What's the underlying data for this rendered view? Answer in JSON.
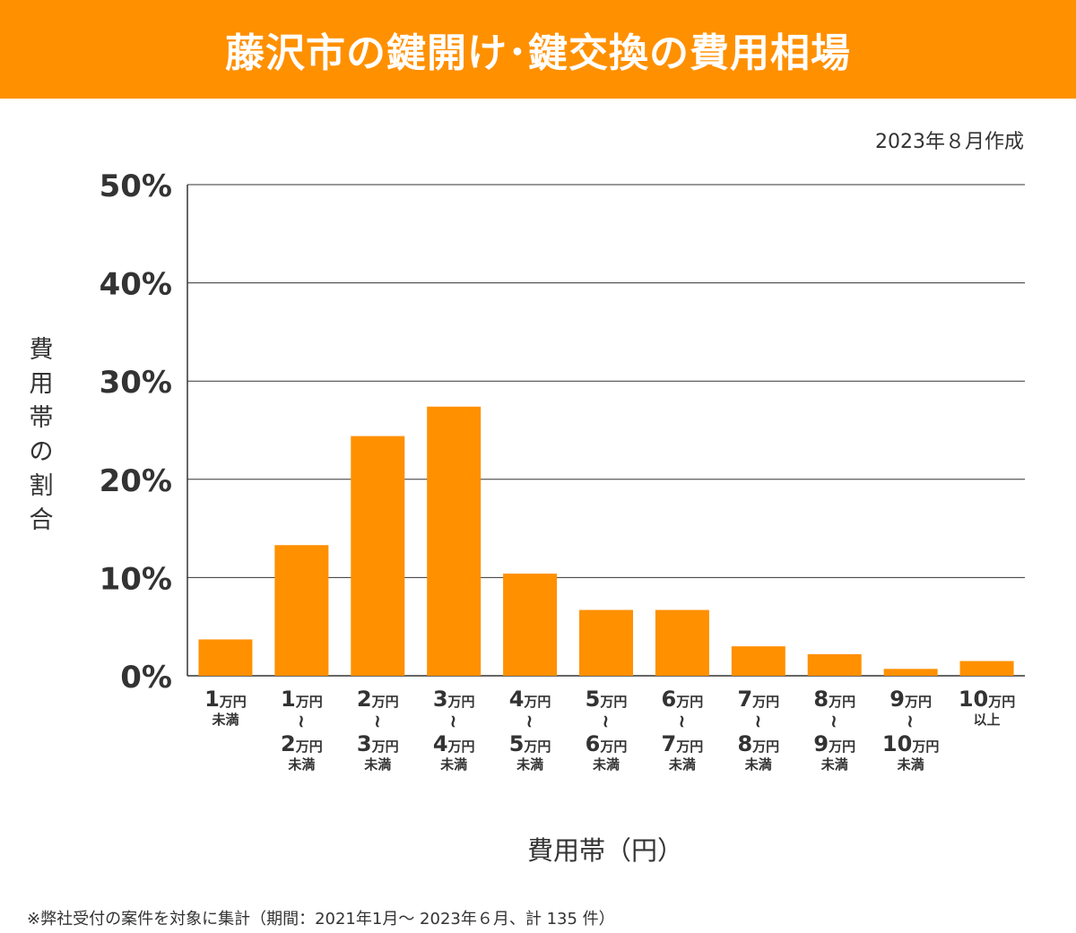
{
  "header": {
    "title": "藤沢市の鍵開け･鍵交換の費用相場"
  },
  "note": {
    "created": "2023年８月作成"
  },
  "footnote": "※弊社受付の案件を対象に集計（期間：2021年1月～ 2023年６月、計 135 件）",
  "colors": {
    "accent": "#ff9000",
    "grid": "#333333",
    "text": "#333333"
  },
  "chart_data": {
    "type": "bar",
    "title": "藤沢市の鍵開け･鍵交換の費用相場",
    "xlabel": "費用帯（円）",
    "ylabel": "費用帯の割合",
    "ylim": [
      0,
      50
    ],
    "yticks": [
      0,
      10,
      20,
      30,
      40,
      50
    ],
    "ytick_labels": [
      "0%",
      "10%",
      "20%",
      "30%",
      "40%",
      "50%"
    ],
    "grid": true,
    "categories": [
      {
        "lines": [
          {
            "num": "1",
            "unit": "万円"
          },
          {
            "sub": "未満"
          }
        ]
      },
      {
        "lines": [
          {
            "num": "1",
            "unit": "万円"
          },
          {
            "tilde": "~"
          },
          {
            "num": "2",
            "unit": "万円"
          },
          {
            "sub": "未満"
          }
        ]
      },
      {
        "lines": [
          {
            "num": "2",
            "unit": "万円"
          },
          {
            "tilde": "~"
          },
          {
            "num": "3",
            "unit": "万円"
          },
          {
            "sub": "未満"
          }
        ]
      },
      {
        "lines": [
          {
            "num": "3",
            "unit": "万円"
          },
          {
            "tilde": "~"
          },
          {
            "num": "4",
            "unit": "万円"
          },
          {
            "sub": "未満"
          }
        ]
      },
      {
        "lines": [
          {
            "num": "4",
            "unit": "万円"
          },
          {
            "tilde": "~"
          },
          {
            "num": "5",
            "unit": "万円"
          },
          {
            "sub": "未満"
          }
        ]
      },
      {
        "lines": [
          {
            "num": "5",
            "unit": "万円"
          },
          {
            "tilde": "~"
          },
          {
            "num": "6",
            "unit": "万円"
          },
          {
            "sub": "未満"
          }
        ]
      },
      {
        "lines": [
          {
            "num": "6",
            "unit": "万円"
          },
          {
            "tilde": "~"
          },
          {
            "num": "7",
            "unit": "万円"
          },
          {
            "sub": "未満"
          }
        ]
      },
      {
        "lines": [
          {
            "num": "7",
            "unit": "万円"
          },
          {
            "tilde": "~"
          },
          {
            "num": "8",
            "unit": "万円"
          },
          {
            "sub": "未満"
          }
        ]
      },
      {
        "lines": [
          {
            "num": "8",
            "unit": "万円"
          },
          {
            "tilde": "~"
          },
          {
            "num": "9",
            "unit": "万円"
          },
          {
            "sub": "未満"
          }
        ]
      },
      {
        "lines": [
          {
            "num": "9",
            "unit": "万円"
          },
          {
            "tilde": "~"
          },
          {
            "num": "10",
            "unit": "万円"
          },
          {
            "sub": "未満"
          }
        ]
      },
      {
        "lines": [
          {
            "num": "10",
            "unit": "万円"
          },
          {
            "sub": "以上"
          }
        ]
      }
    ],
    "values": [
      3.7,
      13.3,
      24.4,
      27.4,
      10.4,
      6.7,
      6.7,
      3.0,
      2.2,
      0.7,
      1.5
    ]
  }
}
